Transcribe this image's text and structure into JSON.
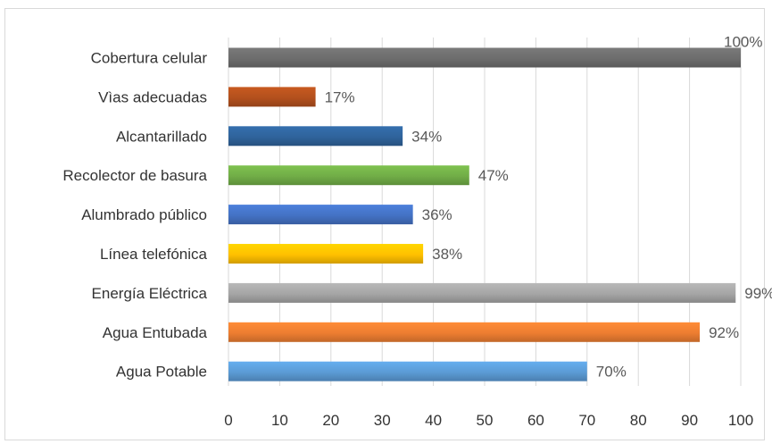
{
  "chart_data": {
    "type": "bar",
    "orientation": "horizontal",
    "title": "",
    "xlabel": "",
    "ylabel": "",
    "categories": [
      "Cobertura celular",
      "Vìas adecuadas",
      "Alcantarillado",
      "Recolector de basura",
      "Alumbrado público",
      "Línea telefónica",
      "Energía Eléctrica",
      "Agua Entubada",
      "Agua Potable"
    ],
    "values": [
      100,
      17,
      34,
      47,
      36,
      38,
      99,
      92,
      70
    ],
    "data_labels": [
      "100%",
      "17%",
      "34%",
      "47%",
      "36%",
      "38%",
      "99%",
      "92%",
      "70%"
    ],
    "colors": [
      "#6d6d6d",
      "#b3501d",
      "#2f639b",
      "#71ad47",
      "#4472c4",
      "#ffc000",
      "#a5a5a5",
      "#ed7d31",
      "#5b9bd5"
    ],
    "xlim": [
      0,
      100
    ],
    "x_ticks": [
      0,
      10,
      20,
      30,
      40,
      50,
      60,
      70,
      80,
      90,
      100
    ],
    "x_tick_labels": [
      "0",
      "10",
      "20",
      "30",
      "40",
      "50",
      "60",
      "70",
      "80",
      "90",
      "100"
    ],
    "grid": "vertical",
    "legend": "none",
    "gridline_color": "#d9d9d9"
  }
}
